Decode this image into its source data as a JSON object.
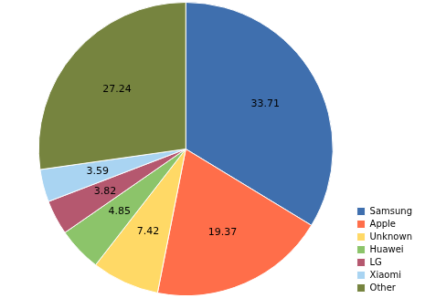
{
  "chart_data": {
    "type": "pie",
    "categories": [
      "Samsung",
      "Apple",
      "Unknown",
      "Huawei",
      "LG",
      "Xiaomi",
      "Other"
    ],
    "values": [
      33.71,
      19.37,
      7.42,
      4.85,
      3.82,
      3.59,
      27.24
    ],
    "colors": [
      "#3f6fae",
      "#ff6e4a",
      "#ffd966",
      "#8cc46a",
      "#b5586f",
      "#a9d4f2",
      "#76843f"
    ],
    "data_labels": true,
    "legend": "lower right"
  }
}
